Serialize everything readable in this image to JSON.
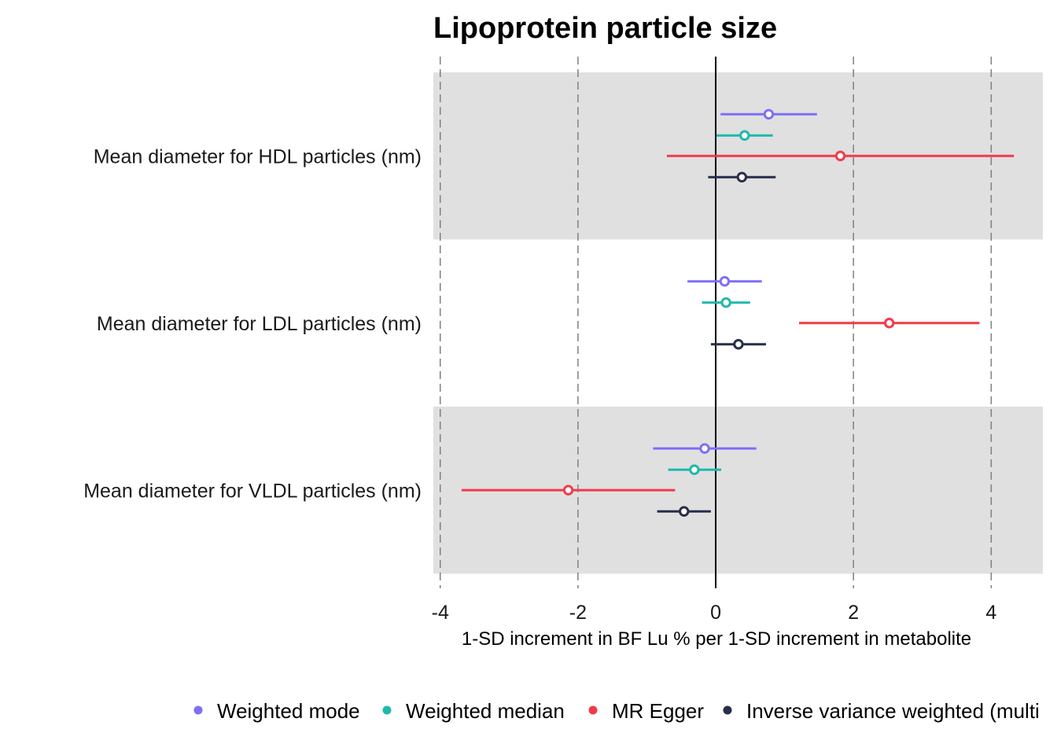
{
  "chart_data": {
    "type": "forest",
    "title": "Lipoprotein particle size",
    "xlabel": "1-SD increment in BF Lu % per 1-SD increment in metabolite",
    "ylabel": "",
    "xlim": [
      -4.1,
      4.75
    ],
    "xticks": [
      -4,
      -2,
      0,
      2,
      4
    ],
    "xtick_labels": [
      "-4",
      "-2",
      "0",
      "2",
      "4"
    ],
    "grid": "dashed vertical at ticks",
    "reference_line": 0,
    "rows": [
      "Mean diameter for HDL particles (nm)",
      "Mean diameter for LDL particles (nm)",
      "Mean diameter for VLDL particles (nm)"
    ],
    "shaded_rows": [
      true,
      false,
      true
    ],
    "series": [
      {
        "name": "Weighted mode",
        "color": "#7f6ff7",
        "values": [
          0.77,
          0.13,
          -0.16
        ],
        "lower": [
          0.07,
          -0.41,
          -0.91
        ],
        "upper": [
          1.47,
          0.67,
          0.59
        ]
      },
      {
        "name": "Weighted median",
        "color": "#1fb8ad",
        "values": [
          0.42,
          0.15,
          -0.31
        ],
        "lower": [
          0.01,
          -0.2,
          -0.69
        ],
        "upper": [
          0.83,
          0.5,
          0.08
        ]
      },
      {
        "name": "MR Egger",
        "color": "#f23b4a",
        "values": [
          1.81,
          2.52,
          -2.14
        ],
        "lower": [
          -0.71,
          1.21,
          -3.69
        ],
        "upper": [
          4.33,
          3.83,
          -0.59
        ]
      },
      {
        "name": "Inverse variance weighted (multi",
        "color": "#262e48",
        "values": [
          0.38,
          0.33,
          -0.46
        ],
        "lower": [
          -0.11,
          -0.07,
          -0.85
        ],
        "upper": [
          0.87,
          0.73,
          -0.07
        ]
      }
    ],
    "legend_position": "bottom"
  }
}
